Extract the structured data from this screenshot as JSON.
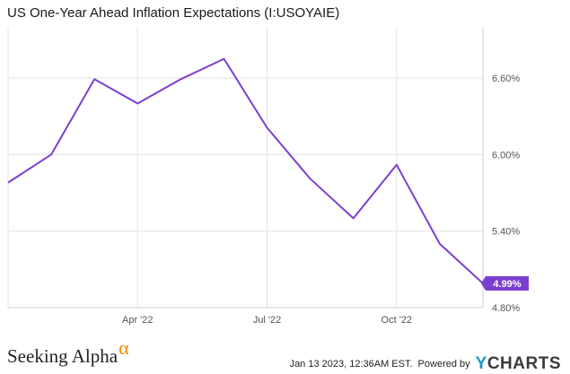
{
  "chart_data": {
    "type": "line",
    "title": "US One-Year Ahead Inflation Expectations (I:USOYAIE)",
    "x": [
      "2022-01",
      "2022-02",
      "2022-03",
      "2022-04",
      "2022-05",
      "2022-06",
      "2022-07",
      "2022-08",
      "2022-09",
      "2022-10",
      "2022-11",
      "2022-12"
    ],
    "series": [
      {
        "values": [
          5.78,
          6.0,
          6.59,
          6.4,
          6.59,
          6.75,
          6.21,
          5.81,
          5.5,
          5.92,
          5.3,
          4.99
        ]
      }
    ],
    "xticks": [
      {
        "x": "2022-04",
        "label": "Apr '22"
      },
      {
        "x": "2022-07",
        "label": "Jul '22"
      },
      {
        "x": "2022-10",
        "label": "Oct '22"
      }
    ],
    "yticks": [
      {
        "v": 4.8,
        "label": "4.80%"
      },
      {
        "v": 5.4,
        "label": "5.40%"
      },
      {
        "v": 6.0,
        "label": "6.00%"
      },
      {
        "v": 6.6,
        "label": "6.60%"
      }
    ],
    "ylim": [
      4.8,
      7.0
    ],
    "last_value_label": "4.99%",
    "grid": true,
    "line_color": "#7b3fd0"
  },
  "footer": {
    "brand": "Seeking Alpha",
    "brand_symbol": "α",
    "timestamp": "Jan 13 2023, 12:36AM EST.",
    "powered_by": "Powered by",
    "ycharts_y": "Y",
    "ycharts_rest": "CHARTS"
  }
}
